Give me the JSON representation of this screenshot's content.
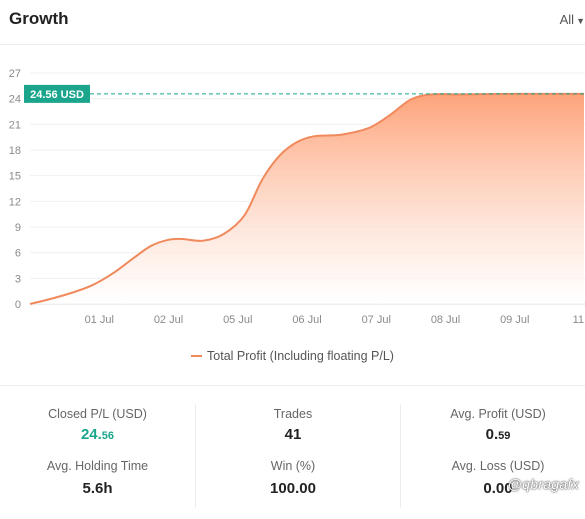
{
  "header": {
    "title": "Growth",
    "range_label": "All"
  },
  "chart_data": {
    "type": "area",
    "y_ticks": [
      0,
      3,
      6,
      9,
      12,
      15,
      18,
      21,
      24,
      27
    ],
    "ylim": [
      0,
      27
    ],
    "x_tick_labels": [
      "01 Jul",
      "02 Jul",
      "05 Jul",
      "06 Jul",
      "07 Jul",
      "08 Jul",
      "09 Jul",
      "11"
    ],
    "x_tick_positions": [
      1,
      2,
      3,
      4,
      5,
      6,
      7,
      8
    ],
    "xlim": [
      0,
      8
    ],
    "series": [
      {
        "name": "Total Profit (Including floating P/L)",
        "points": [
          [
            0.0,
            0.0
          ],
          [
            0.3,
            0.6
          ],
          [
            0.6,
            1.3
          ],
          [
            0.9,
            2.2
          ],
          [
            1.2,
            3.6
          ],
          [
            1.5,
            5.4
          ],
          [
            1.75,
            6.8
          ],
          [
            2.0,
            7.5
          ],
          [
            2.2,
            7.6
          ],
          [
            2.5,
            7.4
          ],
          [
            2.8,
            8.2
          ],
          [
            3.1,
            10.4
          ],
          [
            3.35,
            14.5
          ],
          [
            3.6,
            17.3
          ],
          [
            3.85,
            18.9
          ],
          [
            4.1,
            19.6
          ],
          [
            4.5,
            19.8
          ],
          [
            4.9,
            20.6
          ],
          [
            5.2,
            22.1
          ],
          [
            5.5,
            23.9
          ],
          [
            5.8,
            24.5
          ],
          [
            6.2,
            24.5
          ],
          [
            7.0,
            24.56
          ],
          [
            8.0,
            24.56
          ]
        ]
      }
    ],
    "reference_line": {
      "value": 24.56,
      "label": "24.56 USD"
    },
    "line_color": "#f08a5d",
    "fill_color_top": "#fda37a",
    "label_bg": "#1aa58c",
    "grid": true
  },
  "legend": {
    "label": "Total Profit (Including floating P/L)"
  },
  "stats": {
    "closed_pl": {
      "label": "Closed P/L (USD)",
      "int": "24.",
      "dec": "56"
    },
    "trades": {
      "label": "Trades",
      "value": "41"
    },
    "avg_profit": {
      "label": "Avg. Profit (USD)",
      "int": "0.",
      "dec": "59"
    },
    "avg_holding": {
      "label": "Avg. Holding Time",
      "value": "5.6h"
    },
    "win": {
      "label": "Win (%)",
      "value": "100.00"
    },
    "avg_loss": {
      "label": "Avg. Loss (USD)",
      "value": "0.00"
    }
  },
  "watermark": "@qbragafx"
}
